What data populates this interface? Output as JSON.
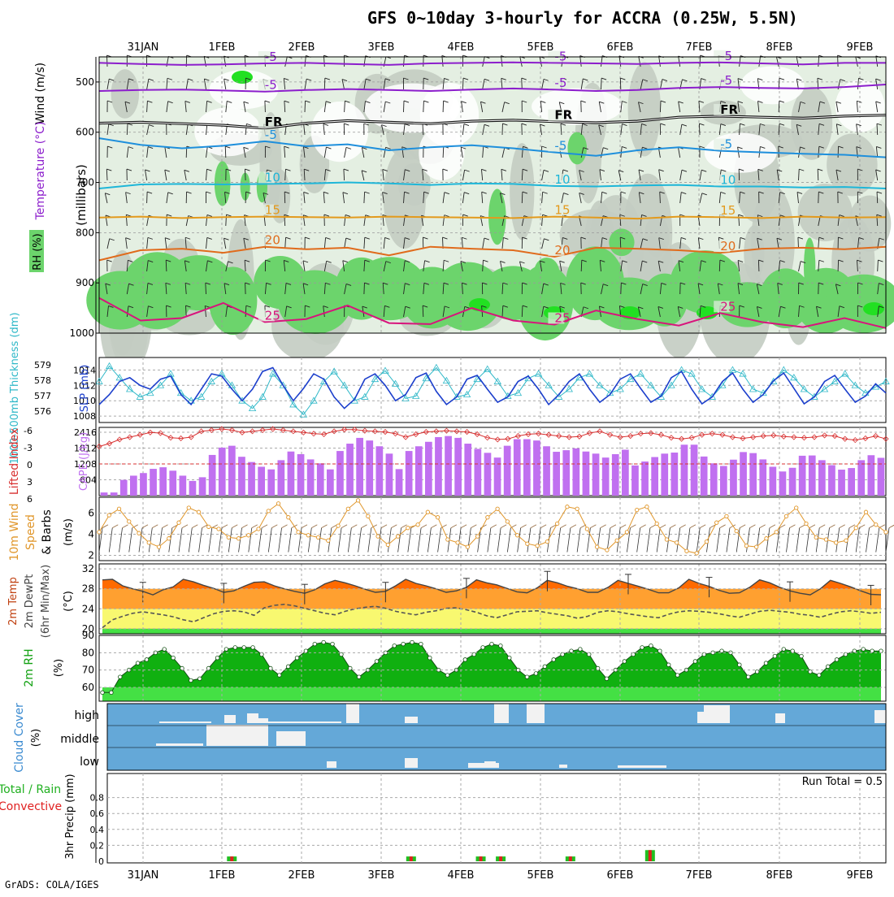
{
  "page": {
    "title": "GFS 0~10day 3-hourly for ACCRA (0.25W, 5.5N)",
    "credit": "GrADS: COLA/IGES"
  },
  "colors": {
    "rh_light": "#e4efe2",
    "rh_mid": "#c3ccc2",
    "rh_green": "#6cd46c",
    "rh_bright": "#22e022",
    "temp_purple": "#8c1ecc",
    "temp_blue": "#1e8fdc",
    "temp_cyan": "#1eb6d8",
    "temp_orange": "#e39a1d",
    "temp_dark_orange": "#e06b1c",
    "temp_magenta": "#d8147c",
    "thickness": "#2fb8c8",
    "slp": "#1c3fcc",
    "cape": "#c070f0",
    "lifted": "#d83030",
    "wind": "#e0962a",
    "t2m_top": "#ff6a00",
    "t2m_mid": "#ffa030",
    "t2m_low": "#f8f870",
    "rh2m_dark": "#10b010",
    "rh2m_light": "#44e044",
    "cloud_bg": "#64a8d8",
    "cloud_fill": "#f2f2f2",
    "precip_green": "#20c020",
    "precip_red": "#e02020"
  },
  "chart_data": [
    {
      "type": "heatmap",
      "panel": "upper-air",
      "x_labels": [
        "31JAN",
        "1FEB",
        "2FEB",
        "3FEB",
        "4FEB",
        "5FEB",
        "6FEB",
        "7FEB",
        "8FEB",
        "9FEB"
      ],
      "y_ticks": [
        "500",
        "600",
        "700",
        "800",
        "900",
        "1000"
      ],
      "ylim": [
        450,
        1000
      ],
      "ylabel_rh": "RH (%)",
      "ylabel_temp": "Temperature (°C)",
      "ylabel_wind": "Wind (m/s)",
      "ylabel_units": "(millibars)",
      "isotherms": [
        {
          "label": "-5",
          "p": [
            462,
            464,
            466,
            465,
            463,
            462,
            464,
            466,
            463,
            462,
            461,
            462,
            463,
            464,
            462,
            461,
            463,
            465,
            462,
            462
          ]
        },
        {
          "label": "-5",
          "p": [
            518,
            516,
            515,
            517,
            519,
            516,
            514,
            516,
            518,
            515,
            513,
            515,
            518,
            516,
            512,
            510,
            512,
            513,
            510,
            505
          ]
        },
        {
          "label": "FR",
          "p": [
            582,
            580,
            583,
            586,
            592,
            582,
            577,
            580,
            583,
            578,
            576,
            579,
            581,
            578,
            570,
            568,
            570,
            572,
            568,
            566
          ]
        },
        {
          "label": "-5",
          "p": [
            612,
            625,
            632,
            627,
            618,
            628,
            624,
            636,
            630,
            626,
            632,
            640,
            647,
            636,
            630,
            637,
            640,
            643,
            645,
            650
          ]
        },
        {
          "label": "10",
          "p": [
            712,
            704,
            703,
            704,
            703,
            702,
            700,
            702,
            705,
            702,
            703,
            707,
            708,
            706,
            705,
            708,
            708,
            710,
            709,
            712
          ]
        },
        {
          "label": "15",
          "p": [
            770,
            768,
            771,
            769,
            768,
            769,
            770,
            768,
            769,
            770,
            771,
            768,
            770,
            772,
            768,
            769,
            771,
            768,
            770,
            769
          ]
        },
        {
          "label": "20",
          "p": [
            855,
            835,
            832,
            840,
            828,
            833,
            830,
            845,
            828,
            832,
            835,
            848,
            830,
            832,
            835,
            840,
            832,
            830,
            833,
            828
          ]
        },
        {
          "label": "25",
          "p": [
            930,
            975,
            970,
            940,
            978,
            972,
            945,
            980,
            982,
            950,
            975,
            983,
            955,
            972,
            985,
            960,
            978,
            988,
            970,
            990
          ]
        }
      ]
    },
    {
      "type": "line",
      "panel": "thickness-slp",
      "ylabel_left": "1000-500mb Thickness (dm)",
      "ylabel_right": "SLP (mb)",
      "y_ticks_left": [
        "576",
        "577",
        "578",
        "579"
      ],
      "y_ticks_right": [
        "1008",
        "1010",
        "1012",
        "1014"
      ],
      "series": [
        {
          "name": "thickness",
          "values": [
            1012.5,
            1014.5,
            1013,
            1011.5,
            1010.5,
            1011,
            1012,
            1013.5,
            1011,
            1010,
            1010.5,
            1012.5,
            1013.5,
            1012,
            1010,
            1009,
            1010.5,
            1013.5,
            1012,
            1009.5,
            1008.2,
            1010,
            1012.5,
            1013.8,
            1012,
            1010,
            1010.5,
            1012.8,
            1013.9,
            1012.2,
            1010.3,
            1010.6,
            1012.9,
            1014.3,
            1012.6,
            1010.5,
            1010.8,
            1012.8,
            1014.1,
            1012.5,
            1010.6,
            1011,
            1012.9,
            1013.5,
            1012,
            1010.5,
            1011.5,
            1013,
            1013.5,
            1012,
            1011,
            1011.5,
            1012.8,
            1013.5,
            1012,
            1010.5,
            1012,
            1014,
            1013.5,
            1011.5,
            1010.5,
            1012,
            1014,
            1013.5,
            1011.5,
            1011,
            1012.5,
            1014,
            1013,
            1011.5,
            1010.5,
            1011.5,
            1012.5,
            1013.5,
            1012,
            1011,
            1011.8,
            1012.5
          ]
        },
        {
          "name": "SLP",
          "values": [
            1009.5,
            1010.8,
            1012.5,
            1013,
            1012,
            1011.5,
            1012.8,
            1013.2,
            1010.8,
            1009.5,
            1011.5,
            1013.5,
            1013.2,
            1011.5,
            1010,
            1011.5,
            1013.8,
            1014.3,
            1012,
            1010,
            1011.6,
            1013.5,
            1012.8,
            1010.5,
            1009,
            1010.2,
            1012.8,
            1013.5,
            1012,
            1010,
            1010.8,
            1013,
            1013.6,
            1011.2,
            1009.5,
            1010.5,
            1012.8,
            1013.3,
            1011.5,
            1009.8,
            1010.5,
            1012.5,
            1013.2,
            1011.5,
            1009.5,
            1010.8,
            1012.5,
            1013.5,
            1011.5,
            1009.8,
            1010.8,
            1012.8,
            1013.5,
            1011.6,
            1009.8,
            1010.6,
            1013,
            1013.8,
            1011.5,
            1009.6,
            1010.5,
            1012.5,
            1013.6,
            1011.5,
            1009.8,
            1010.8,
            1012.6,
            1013.6,
            1011.6,
            1009.6,
            1010.5,
            1012.5,
            1013.3,
            1011.5,
            1009.8,
            1010.6,
            1012.2,
            1011
          ]
        }
      ]
    },
    {
      "type": "bar",
      "panel": "lifted-cape",
      "ylabel_left": "Lifted Index",
      "ylabel_right": "CAPE (J/kg)",
      "y_ticks_left": [
        "-6",
        "-3",
        "0",
        "3",
        "6"
      ],
      "y_ticks_right": [
        "604",
        "1208",
        "1812",
        "2416"
      ],
      "series": [
        {
          "name": "CAPE",
          "values": [
            120,
            120,
            600,
            760,
            860,
            1020,
            1080,
            950,
            760,
            560,
            700,
            1550,
            1830,
            1900,
            1480,
            1280,
            1100,
            1000,
            1350,
            1680,
            1580,
            1380,
            1230,
            1000,
            1700,
            1980,
            2200,
            2100,
            1880,
            1600,
            1010,
            1700,
            1880,
            2050,
            2230,
            2270,
            2200,
            1980,
            1780,
            1630,
            1450,
            1900,
            2150,
            2150,
            2100,
            1880,
            1670,
            1730,
            1800,
            1680,
            1600,
            1450,
            1580,
            1750,
            1150,
            1300,
            1470,
            1600,
            1640,
            1940,
            1940,
            1490,
            1230,
            1130,
            1370,
            1660,
            1620,
            1380,
            1100,
            920,
            1060,
            1520,
            1530,
            1350,
            1160,
            990,
            1050,
            1350,
            1540,
            1440
          ]
        },
        {
          "name": "Lifted Index",
          "values": [
            -3,
            -3.5,
            -4.2,
            -4.6,
            -5,
            -5.4,
            -5.3,
            -4.5,
            -4.4,
            -4.6,
            -5.6,
            -5.8,
            -6,
            -5.8,
            -5.4,
            -5.6,
            -5.8,
            -6,
            -5.8,
            -5.6,
            -5.4,
            -5.2,
            -5.1,
            -5.6,
            -5.9,
            -5.9,
            -5.7,
            -5.6,
            -5.5,
            -5.2,
            -4.6,
            -5.1,
            -5.5,
            -5.6,
            -5.7,
            -5.6,
            -5.5,
            -5.1,
            -4.5,
            -4.2,
            -4.3,
            -4.8,
            -5.1,
            -5.2,
            -5,
            -4.8,
            -4.6,
            -4.7,
            -5.3,
            -5.6,
            -5,
            -4.6,
            -4.8,
            -5.2,
            -5.3,
            -5,
            -4.5,
            -4.3,
            -4.5,
            -5,
            -5.2,
            -5,
            -4.6,
            -4.4,
            -4.6,
            -4.8,
            -4.9,
            -4.7,
            -4.6,
            -4.5,
            -4.6,
            -4.9,
            -4.8,
            -4.3,
            -4.1,
            -4.4,
            -4.8,
            -4.3
          ]
        }
      ]
    },
    {
      "type": "line",
      "panel": "10m-wind",
      "ylabel": "10m Wind Speed & Barbs (m/s)",
      "y_ticks": [
        "2",
        "4",
        "6"
      ],
      "series": [
        {
          "name": "10m wind speed",
          "values": [
            4.2,
            5.8,
            6.4,
            5.2,
            4.1,
            3.2,
            2.8,
            3.6,
            5.1,
            6.5,
            6.1,
            4.7,
            4.5,
            3.7,
            3.6,
            3.9,
            4.5,
            6.2,
            6.9,
            5.6,
            4.2,
            3.9,
            3.7,
            3.4,
            4.8,
            6.4,
            7.2,
            5.7,
            3.8,
            3,
            3.8,
            4.6,
            4.9,
            6.1,
            5.6,
            3.5,
            3.2,
            2.8,
            3.8,
            5.6,
            6.4,
            5.2,
            3.9,
            3.1,
            2.9,
            3.3,
            5,
            6.6,
            6.4,
            4.5,
            2.8,
            2.5,
            3.4,
            4.2,
            6.3,
            6.6,
            5,
            3.5,
            3.2,
            2.4,
            2.2,
            3.3,
            5.1,
            5.7,
            4.3,
            2.9,
            2.8,
            3.6,
            4.2,
            5.7,
            6.5,
            5,
            3.7,
            3.5,
            3.2,
            3.4,
            4.6,
            6.1,
            4.9,
            4.2
          ]
        }
      ]
    },
    {
      "type": "area",
      "panel": "2m-temp",
      "ylabel": "2m Temp 2m DewPt (6hr Min/Max) (°C)",
      "y_ticks": [
        "20",
        "24",
        "28",
        "32"
      ],
      "ylim": [
        19,
        33
      ],
      "series": [
        {
          "name": "2m Temp",
          "values": [
            29.8,
            29.9,
            28.6,
            28,
            27.5,
            26.8,
            27.8,
            28.4,
            29.9,
            29.4,
            28.7,
            28.1,
            27.3,
            27.6,
            28.5,
            29.3,
            29.4,
            28.6,
            28,
            27.5,
            27.1,
            27.8,
            29,
            29.7,
            29.2,
            28.6,
            27.9,
            27.3,
            27.5,
            28.6,
            29.9,
            29.1,
            28.6,
            28,
            27.3,
            27.6,
            28.3,
            29.8,
            29.2,
            28.8,
            28.1,
            27.4,
            27.2,
            28.2,
            29.7,
            29.2,
            28.5,
            28,
            27.3,
            27.3,
            28.3,
            29.7,
            29.1,
            28.5,
            27.9,
            27.2,
            27.2,
            28.2,
            29.9,
            29.1,
            28.5,
            27.7,
            27.1,
            27.2,
            28.3,
            29.8,
            29.2,
            28.3,
            27.6,
            27.1,
            26.8,
            28,
            29.7,
            29.1,
            28.4,
            27.6,
            26.9,
            26.8
          ]
        },
        {
          "name": "2m DewPt",
          "values": [
            20.2,
            21.8,
            22.5,
            23.1,
            23.4,
            23.1,
            22.8,
            22.4,
            21.8,
            21.4,
            22.2,
            23,
            23.5,
            23.6,
            23.4,
            22.7,
            24.2,
            24.7,
            24.9,
            24.6,
            24.1,
            23.6,
            23.1,
            22.8,
            23.5,
            24,
            24.3,
            24.5,
            24.1,
            23.5,
            23.1,
            22.8,
            23.3,
            23.6,
            24.1,
            24.2,
            23.8,
            23.3,
            22.6,
            22.2,
            22.8,
            23.4,
            23.5,
            23.6,
            23.2,
            22.9,
            22.6,
            22.1,
            22.5,
            23.3,
            23.6,
            23.4,
            23,
            22.7,
            22.4,
            22.2,
            22.9,
            23.4,
            23.6,
            23.5,
            23.3,
            23,
            22.6,
            22.3,
            22.9,
            23.5,
            23.7,
            23.5,
            23.3,
            22.9,
            22.7,
            22.3,
            22.9,
            23.4,
            23.6,
            23.4,
            23.1,
            23.3
          ]
        }
      ]
    },
    {
      "type": "area",
      "panel": "2m-rh",
      "ylabel": "2m RH (%)",
      "y_ticks": [
        "60",
        "70",
        "80",
        "90"
      ],
      "ylim": [
        52,
        90
      ],
      "series": [
        {
          "name": "2m RH",
          "values": [
            57,
            57,
            66,
            70,
            74,
            76,
            80,
            82,
            77,
            71,
            64,
            65,
            71,
            77,
            82,
            83,
            83,
            83,
            79,
            71,
            67,
            72,
            77,
            81,
            85,
            86,
            85,
            79,
            71,
            66,
            70,
            75,
            80,
            84,
            85,
            86,
            85,
            77,
            70,
            67,
            70,
            76,
            79,
            83,
            85,
            84,
            77,
            70,
            66,
            68,
            72,
            76,
            79,
            81,
            82,
            79,
            71,
            65,
            70,
            75,
            79,
            83,
            84,
            81,
            73,
            67,
            70,
            75,
            79,
            80,
            81,
            80,
            73,
            66,
            69,
            74,
            78,
            82,
            81,
            78,
            69,
            67,
            72,
            76,
            79,
            81,
            82,
            81,
            81
          ]
        }
      ]
    },
    {
      "type": "heatmap",
      "panel": "cloud-cover",
      "ylabel": "Cloud Cover (%)",
      "y_ticks": [
        "high",
        "middle",
        "low"
      ]
    },
    {
      "type": "bar",
      "panel": "3hr-precip",
      "ylabel": "3hr Precip (mm)",
      "ylabel_legend_a": "Total / Rain",
      "ylabel_legend_b": "Convective",
      "y_ticks": [
        "0",
        "0.2",
        "0.4",
        "0.6",
        "0.8"
      ],
      "ylim": [
        0,
        1
      ],
      "run_total_label": "Run Total = 0.5",
      "series": [
        {
          "name": "Total / Rain",
          "x": [
            "1FEB+3h",
            "3FEB+9h",
            "4FEB+6h",
            "4FEB+12h",
            "5FEB+9h",
            "6FEB+9h"
          ],
          "values": [
            0.06,
            0.06,
            0.06,
            0.06,
            0.06,
            0.14
          ]
        }
      ]
    }
  ]
}
